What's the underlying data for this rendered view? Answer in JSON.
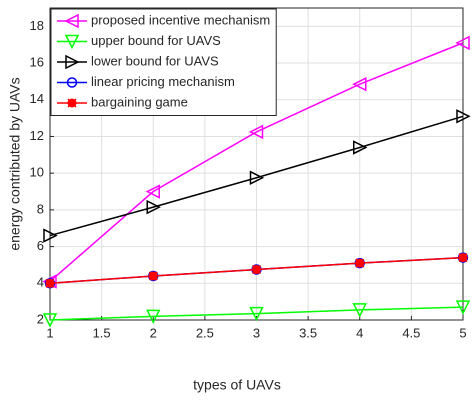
{
  "chart_data": {
    "type": "line",
    "xlabel": "types of UAVs",
    "ylabel": "energy contributed by UAVs",
    "x": [
      1,
      2,
      3,
      4,
      5
    ],
    "series": [
      {
        "name": "proposed incentive mechanism",
        "color": "#ff00ff",
        "marker": "triangle-left",
        "values": [
          4.1,
          9.0,
          12.25,
          14.85,
          17.1
        ]
      },
      {
        "name": "upper bound for UAVS",
        "color": "#00ff00",
        "marker": "triangle-down",
        "values": [
          2.0,
          2.2,
          2.35,
          2.55,
          2.7
        ]
      },
      {
        "name": "lower bound for UAVS",
        "color": "#000000",
        "marker": "triangle-right",
        "values": [
          6.6,
          8.15,
          9.75,
          11.4,
          13.1
        ]
      },
      {
        "name": "linear pricing mechanism",
        "color": "#0000ff",
        "marker": "circle",
        "values": [
          4.0,
          4.4,
          4.75,
          5.1,
          5.4
        ]
      },
      {
        "name": "bargaining game",
        "color": "#ff0000",
        "marker": "cross",
        "values": [
          4.0,
          4.4,
          4.75,
          5.1,
          5.4
        ]
      }
    ],
    "xlim": [
      1,
      5
    ],
    "xticks": [
      1,
      1.5,
      2,
      2.5,
      3,
      3.5,
      4,
      4.5,
      5
    ],
    "ylim": [
      2,
      19
    ],
    "yticks": [
      2,
      4,
      6,
      8,
      10,
      12,
      14,
      16,
      18
    ],
    "grid": true,
    "legend": "upper-left"
  }
}
